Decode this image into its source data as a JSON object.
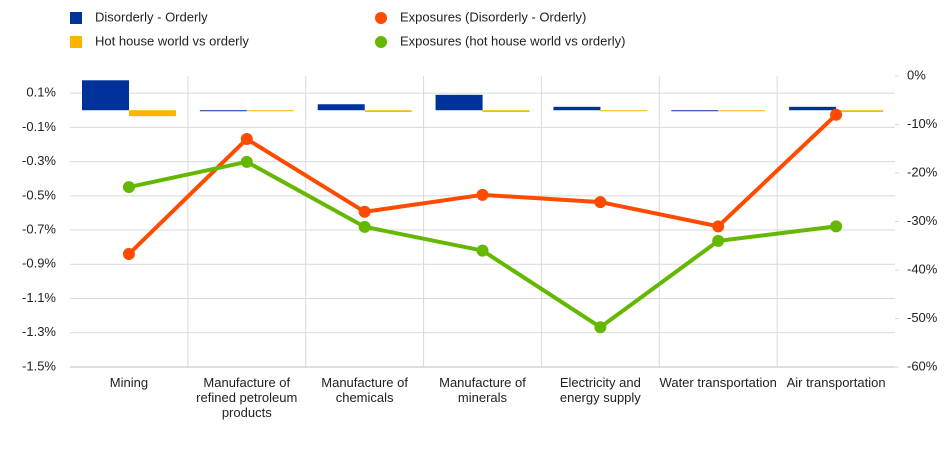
{
  "chart_data": {
    "type": "bar_line",
    "categories": [
      "Mining",
      "Manufacture of refined petroleum products",
      "Manufacture of chemicals",
      "Manufacture of minerals",
      "Electricity and energy supply",
      "Water transportation",
      "Air transportation"
    ],
    "series": [
      {
        "name": "Disorderly - Orderly",
        "color": "#003299",
        "kind": "bar",
        "values": [
          0.175,
          -0.005,
          0.035,
          0.09,
          0.02,
          -0.003,
          0.02
        ]
      },
      {
        "name": "Hot house world vs orderly",
        "color": "#ffb400",
        "kind": "bar",
        "values": [
          -0.035,
          0.0,
          -0.01,
          -0.01,
          -0.005,
          0.0,
          -0.01
        ]
      },
      {
        "name": "Exposures (Disorderly - Orderly)",
        "color": "#ff4b00",
        "kind": "line",
        "axis": "y2",
        "values": [
          -36.7,
          -13,
          -28,
          -24.5,
          -26,
          -31,
          -8
        ]
      },
      {
        "name": "Exposures (hot house world vs orderly)",
        "color": "#65b800",
        "kind": "line",
        "axis": "y2",
        "values": [
          -22.9,
          -17.7,
          -31.1,
          -36,
          -51.8,
          -34,
          -31
        ]
      }
    ],
    "ylim": [
      -1.5,
      0.2
    ],
    "yticks": [
      {
        "value": 0.1,
        "label": "0.1%"
      },
      {
        "value": -0.1,
        "label": "-0.1%"
      },
      {
        "value": -0.3,
        "label": "-0.3%"
      },
      {
        "value": -0.5,
        "label": "-0.5%"
      },
      {
        "value": -0.7,
        "label": "-0.7%"
      },
      {
        "value": -0.9,
        "label": "-0.9%"
      },
      {
        "value": -1.1,
        "label": "-1.1%"
      },
      {
        "value": -1.3,
        "label": "-1.3%"
      },
      {
        "value": -1.5,
        "label": "-1.5%"
      }
    ],
    "y2lim": [
      -60,
      0
    ],
    "y2ticks": [
      {
        "value": 0,
        "label": "0%"
      },
      {
        "value": -10,
        "label": "-10%"
      },
      {
        "value": -20,
        "label": "-20%"
      },
      {
        "value": -30,
        "label": "-30%"
      },
      {
        "value": -40,
        "label": "-40%"
      },
      {
        "value": -50,
        "label": "-50%"
      },
      {
        "value": -60,
        "label": "-60%"
      }
    ],
    "grid": true
  }
}
